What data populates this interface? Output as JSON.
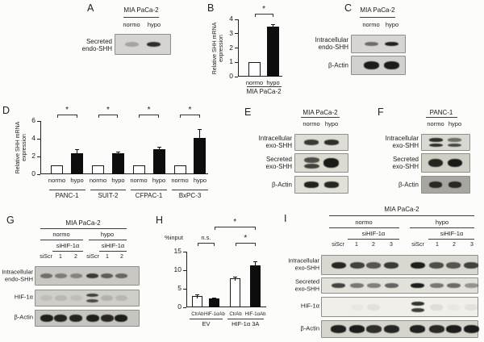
{
  "figure": {
    "background": "#fcfcfb"
  },
  "panels": {
    "A": {
      "letter": "A",
      "cell_line": "MIA PaCa-2",
      "lanes": [
        "normo",
        "hypo"
      ],
      "blot_labels": [
        "Secreted\nendo-SHH"
      ],
      "blots": [
        {
          "bg": "#d6d4d1",
          "bands": [
            0.25,
            0.88
          ]
        }
      ]
    },
    "B": {
      "letter": "B"
    },
    "C": {
      "letter": "C",
      "cell_line": "MIA PaCa-2",
      "lanes": [
        "normo",
        "hypo"
      ],
      "blot_labels": [
        "Intracellular\nendo-SHH",
        "β-Actin"
      ],
      "blots": [
        {
          "bg": "#d8d6d3",
          "bands": [
            0.55,
            0.95
          ]
        },
        {
          "bg": "#d3d1cd",
          "bands": [
            0.97,
            0.97
          ]
        }
      ]
    },
    "D": {
      "letter": "D"
    },
    "E": {
      "letter": "E",
      "cell_line": "MIA PaCa-2",
      "lanes": [
        "normo",
        "hypo"
      ],
      "blot_labels": [
        "Intracellular\nexo-SHH",
        "Secreted\nexo-SHH",
        "β-Actin"
      ],
      "blots": [
        {
          "bg": "#deddd6",
          "bands": [
            0.82,
            0.88
          ]
        },
        {
          "bg": "#dcdbd2",
          "bands": [
            [
              0.72,
              0.78
            ],
            0.98
          ]
        },
        {
          "bg": "#e0dfd8",
          "bands": [
            0.95,
            0.92
          ]
        }
      ]
    },
    "F": {
      "letter": "F",
      "cell_line": "PANC-1",
      "lanes": [
        "normo",
        "hypo"
      ],
      "blot_labels": [
        "Intracellular\nexo-SHH",
        "Secreted\nexo-SHH",
        "β-Actin"
      ],
      "blots": [
        {
          "bg": "#d9d8d1",
          "bands": [
            [
              0.88,
              0.88
            ],
            [
              0.55,
              0.75
            ]
          ]
        },
        {
          "bg": "#d0cfc6",
          "bands": [
            0.92,
            0.98
          ]
        },
        {
          "bg": "#a8a6a0",
          "bands": [
            0.88,
            0.88
          ]
        }
      ]
    },
    "G": {
      "letter": "G",
      "cell_line": "MIA PaCa-2",
      "conditions": [
        "normo",
        "hypo"
      ],
      "si_labels": [
        "siHIF-1α",
        "siHIF-1α"
      ],
      "lanes": [
        "siScr",
        "1",
        "2",
        "siScr",
        "1",
        "2"
      ],
      "blot_labels": [
        "Intracellular\nendo-SHH",
        "HIF-1α",
        "β-Actin"
      ],
      "blots": [
        {
          "bg": "#c9c8c3",
          "bands": [
            0.5,
            0.42,
            0.38,
            0.8,
            0.6,
            0.55
          ]
        },
        {
          "bg": "#cfcec9",
          "bands": [
            0.08,
            0.12,
            0.08,
            [
              0.78,
              0.72
            ],
            0.15,
            0.12
          ]
        },
        {
          "bg": "#c6c5c0",
          "bands": [
            0.95,
            0.92,
            0.92,
            0.95,
            0.9,
            0.97
          ]
        }
      ]
    },
    "H": {
      "letter": "H"
    },
    "I": {
      "letter": "I",
      "cell_line": "MIA PaCa-2",
      "conditions": [
        "normo",
        "hypo"
      ],
      "si_labels": [
        "siHIF-1α",
        "siHIF-1α"
      ],
      "lanes": [
        "siScr",
        "1",
        "2",
        "3",
        "siScr",
        "1",
        "2",
        "3"
      ],
      "blot_labels": [
        "Intracellular\nexo-SHH",
        "Secreted\nexo-SHH",
        "HIF-1α",
        "β-Actin"
      ],
      "blots": [
        {
          "bg": "#d9d8d0",
          "bands": [
            0.92,
            0.78,
            0.68,
            0.82,
            0.97,
            0.72,
            0.68,
            0.78
          ]
        },
        {
          "bg": "#e3e2da",
          "bands": [
            0.78,
            0.52,
            0.48,
            0.62,
            0.97,
            0.52,
            0.58,
            0.38
          ]
        },
        {
          "bg": "#f0efe9",
          "bands": [
            0,
            0.03,
            0.06,
            0,
            [
              0.88,
              0.82
            ],
            0.08,
            0.03,
            0.06
          ]
        },
        {
          "bg": "#d6d5cd",
          "bands": [
            0.95,
            0.97,
            0.88,
            0.92,
            0.95,
            0.9,
            0.97,
            0.97
          ]
        }
      ]
    }
  },
  "chart_data": [
    {
      "type": "bar",
      "panel": "B",
      "categories": [
        "normo",
        "hypo"
      ],
      "values": [
        1.0,
        3.5
      ],
      "errors": [
        0,
        0.18
      ],
      "bar_colors": [
        "white",
        "black"
      ],
      "title": "",
      "xlabel": "",
      "ylabel": "Relative SHH mRNA\nexpression",
      "ylim": [
        0,
        4
      ],
      "yticks": [
        0,
        1,
        2,
        3,
        4
      ],
      "grid": false,
      "groups": [
        {
          "label": "MIA PaCa-2",
          "from": 0,
          "to": 1
        }
      ],
      "significance": [
        {
          "from": 0,
          "to": 1,
          "label": "*",
          "row": 0
        }
      ]
    },
    {
      "type": "bar",
      "panel": "D",
      "categories": [
        "normo",
        "hypo",
        "normo",
        "hypo",
        "normo",
        "hypo",
        "normo",
        "hypo"
      ],
      "values": [
        1.0,
        2.4,
        1.0,
        2.35,
        1.0,
        2.8,
        1.0,
        4.1
      ],
      "errors": [
        0,
        0.45,
        0,
        0.2,
        0,
        0.25,
        0,
        1.0
      ],
      "bar_colors": [
        "white",
        "black",
        "white",
        "black",
        "white",
        "black",
        "white",
        "black"
      ],
      "title": "",
      "xlabel": "",
      "ylabel": "Relative SHH mRNA\nexpression",
      "ylim": [
        0,
        6
      ],
      "yticks": [
        0,
        2,
        4,
        6
      ],
      "grid": false,
      "groups": [
        {
          "label": "PANC-1",
          "from": 0,
          "to": 1
        },
        {
          "label": "SUIT-2",
          "from": 2,
          "to": 3
        },
        {
          "label": "CFPAC-1",
          "from": 4,
          "to": 5
        },
        {
          "label": "BxPC-3",
          "from": 6,
          "to": 7
        }
      ],
      "significance": [
        {
          "from": 0,
          "to": 1,
          "label": "*",
          "row": 0
        },
        {
          "from": 2,
          "to": 3,
          "label": "*",
          "row": 0
        },
        {
          "from": 4,
          "to": 5,
          "label": "*",
          "row": 0
        },
        {
          "from": 6,
          "to": 7,
          "label": "*",
          "row": 0
        }
      ]
    },
    {
      "type": "bar",
      "panel": "H",
      "categories": [
        "CtrAb",
        "HIF-1αAb",
        "CtrAb",
        "HIF-1αAb"
      ],
      "values": [
        3.1,
        2.4,
        7.8,
        11.4
      ],
      "errors": [
        0.45,
        0.2,
        0.5,
        0.95
      ],
      "bar_colors": [
        "white",
        "black",
        "white",
        "black"
      ],
      "title": "",
      "xlabel": "",
      "ylabel": "%input",
      "ylim": [
        0,
        15
      ],
      "yticks": [
        0,
        5,
        10,
        15
      ],
      "grid": false,
      "groups": [
        {
          "label": "EV",
          "from": 0,
          "to": 1
        },
        {
          "label": "HIF-1α 3A",
          "from": 2,
          "to": 3
        }
      ],
      "significance": [
        {
          "from": 0,
          "to": 1,
          "label": "n.s.",
          "row": 0
        },
        {
          "from": 2,
          "to": 3,
          "label": "*",
          "row": 0
        },
        {
          "from": 1,
          "to": 3,
          "label": "*",
          "row": 1
        }
      ]
    }
  ]
}
